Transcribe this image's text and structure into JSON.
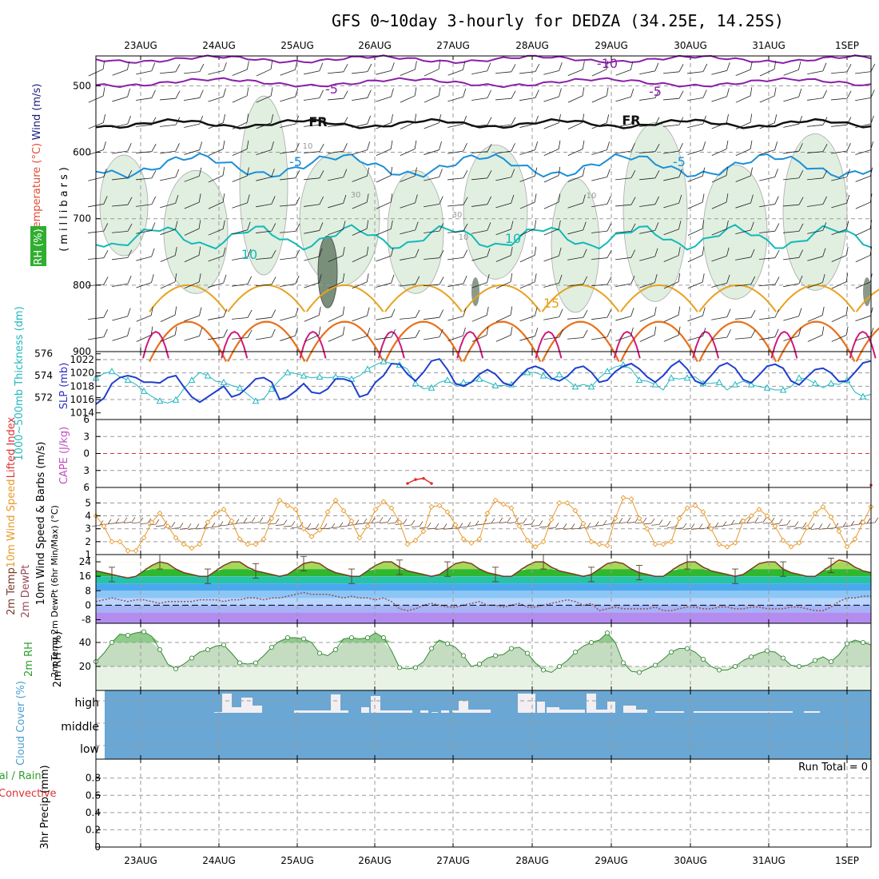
{
  "title": "GFS 0~10day 3-hourly for DEDZA (34.25E, 14.25S)",
  "dates": [
    "23AUG",
    "24AUG",
    "25AUG",
    "26AUG",
    "27AUG",
    "28AUG",
    "29AUG",
    "30AUG",
    "31AUG",
    "1SEP"
  ],
  "chart_data": [
    {
      "type": "line",
      "name": "upper-air",
      "title": "Wind (m/s), Temperature (°C), RH (%)",
      "ylabel": "millibars",
      "ylim": [
        900,
        450
      ],
      "yticks": [
        500,
        600,
        700,
        800,
        900
      ],
      "legend": {
        "wind": "Wind (m/s)",
        "temp": "Temperature (°C)",
        "rh": "RH (%)",
        "units": "(millibars)"
      },
      "isotherm_labels": [
        "-10",
        "-5",
        "-5",
        "FR",
        "FR",
        "-5",
        "-5",
        "10",
        "10",
        "15"
      ],
      "rh_labels": [
        "10",
        "30",
        "10",
        "30",
        "10"
      ]
    },
    {
      "type": "line",
      "name": "slp-thickness",
      "series": [
        {
          "name": "1000~500mb Thickness (dm)",
          "color": "#20b8c0",
          "values": [
            573.8,
            574.2,
            574.4,
            573.9,
            573.6,
            573.2,
            572.6,
            572.1,
            571.7,
            571.5,
            571.8,
            572.8,
            573.6,
            574.3,
            574.0,
            573.5,
            573.4,
            573.1,
            572.9,
            572.3,
            571.7,
            571.9,
            572.8,
            573.6,
            574.3,
            574.2,
            574.0,
            573.8,
            573.9,
            573.8,
            573.9,
            573.9,
            573.7,
            574.0,
            574.6,
            575.0,
            575.3,
            575.1,
            575.0,
            574.6,
            573.3,
            572.8,
            572.9,
            573.4,
            573.6,
            573.1,
            573.4,
            573.4,
            573.7,
            573.4,
            573.1,
            573.1,
            573.2,
            573.9,
            574.3,
            574.3,
            574.0,
            573.6,
            574.1,
            573.6,
            573.0,
            573.2,
            573.0,
            573.8,
            574.4,
            574.8,
            575.0,
            574.6,
            573.6,
            573.5,
            573.2,
            572.7,
            573.8,
            573.7,
            573.8,
            573.9,
            573.3,
            573.3,
            573.4,
            572.7,
            573.2,
            573.5,
            573.2,
            573.0,
            572.9,
            572.7,
            572.7,
            573.0,
            573.8,
            573.7,
            573.3,
            572.9,
            573.3,
            573.2,
            573.6,
            572.5,
            572.1,
            572.3
          ]
        },
        {
          "name": "SLP (mb)",
          "color": "#1f3fcc",
          "values": [
            1015.3,
            1016.2,
            1018.4,
            1019.3,
            1019.6,
            1019.3,
            1018.6,
            1018.6,
            1018.5,
            1019.3,
            1019.6,
            1017.9,
            1016.4,
            1015.6,
            1016.4,
            1017.2,
            1018.0,
            1016.4,
            1016.8,
            1017.9,
            1019.1,
            1019.3,
            1018.6,
            1016.0,
            1016.4,
            1017.3,
            1018.4,
            1017.1,
            1016.9,
            1017.6,
            1019.1,
            1019.1,
            1018.7,
            1016.4,
            1016.8,
            1018.6,
            1019.6,
            1021.4,
            1021.3,
            1019.8,
            1018.8,
            1020.1,
            1021.8,
            1022.1,
            1020.5,
            1018.4,
            1018.0,
            1018.6,
            1019.8,
            1020.5,
            1019.8,
            1018.5,
            1018.1,
            1019.4,
            1020.6,
            1021.0,
            1020.5,
            1019.2,
            1018.8,
            1019.5,
            1020.7,
            1021.0,
            1020.1,
            1018.6,
            1018.9,
            1020.2,
            1021.0,
            1021.4,
            1020.6,
            1019.4,
            1018.6,
            1019.6,
            1021.0,
            1021.8,
            1020.6,
            1018.8,
            1018.3,
            1019.6,
            1021.0,
            1021.5,
            1020.7,
            1019.0,
            1018.5,
            1019.7,
            1021.0,
            1021.3,
            1020.7,
            1018.8,
            1018.2,
            1019.4,
            1020.5,
            1020.7,
            1020.0,
            1018.7,
            1018.8,
            1020.1,
            1021.5,
            1021.8
          ]
        }
      ],
      "ylim_thickness": [
        570,
        576
      ],
      "ylim_slp": [
        1013,
        1023
      ],
      "yticks_thickness": [
        572,
        574,
        576
      ],
      "yticks_slp": [
        1014,
        1016,
        1018,
        1020,
        1022
      ],
      "ylabel_left": "1000~500mb Thickness (dm)",
      "ylabel_right": "SLP (mb)"
    },
    {
      "type": "line",
      "name": "stability",
      "series": [
        {
          "name": "Lifted Index",
          "color": "#e03030",
          "values": [
            {
              "i": 39,
              "v": 5.3
            },
            {
              "i": 40,
              "v": 4.6
            },
            {
              "i": 41,
              "v": 4.4
            },
            {
              "i": 42,
              "v": 5.3
            }
          ]
        }
      ],
      "yticks": [
        "6",
        "3",
        "0",
        "3",
        "6"
      ],
      "ylim": [
        -6,
        6
      ],
      "ylabel_left": "Lifted Index",
      "ylabel_right": "CAPE (J/kg)"
    },
    {
      "type": "line",
      "name": "wind10m",
      "series": [
        {
          "name": "10m Wind Speed",
          "color": "#e89a2a",
          "values": [
            4.0,
            3.2,
            2.0,
            2.0,
            1.3,
            1.3,
            2.3,
            3.5,
            4.2,
            3.2,
            2.3,
            1.8,
            1.5,
            1.8,
            3.5,
            4.2,
            4.5,
            3.6,
            2.2,
            1.8,
            1.8,
            2.2,
            3.8,
            5.2,
            4.8,
            4.5,
            3.0,
            2.4,
            2.9,
            4.3,
            5.2,
            4.4,
            3.6,
            2.3,
            3.2,
            4.5,
            5.1,
            4.6,
            3.5,
            1.8,
            2.1,
            2.8,
            4.7,
            4.8,
            4.3,
            3.3,
            2.2,
            1.9,
            2.2,
            4.2,
            5.2,
            4.9,
            4.6,
            3.2,
            2.1,
            1.6,
            2.0,
            3.7,
            5.0,
            5.0,
            4.4,
            3.4,
            2.0,
            1.8,
            1.7,
            3.8,
            5.4,
            5.3,
            3.8,
            3.0,
            1.8,
            1.8,
            2.0,
            3.8,
            4.6,
            4.8,
            4.3,
            3.0,
            1.8,
            1.6,
            1.9,
            3.6,
            4.0,
            4.5,
            4.0,
            3.2,
            2.1,
            1.6,
            1.9,
            3.1,
            4.2,
            4.7,
            3.9,
            2.8,
            1.6,
            2.2,
            3.5,
            4.7
          ]
        }
      ],
      "ylim": [
        1,
        6
      ],
      "yticks": [
        1,
        2,
        3,
        4,
        5
      ],
      "ylabel": "10m Wind Speed & Barbs (m/s)"
    },
    {
      "type": "area",
      "name": "temperature2m",
      "series": [
        {
          "name": "2m Temp",
          "color": "#7a3a2a",
          "values": [
            19,
            18,
            17,
            16,
            15,
            16,
            19,
            22,
            24,
            23,
            20,
            18,
            17,
            16,
            16,
            19,
            22,
            24,
            24,
            21,
            19,
            18,
            17,
            16,
            17,
            20,
            23,
            24,
            23,
            20,
            18,
            17,
            16,
            16,
            19,
            22,
            24,
            24,
            21,
            19,
            18,
            17,
            16,
            17,
            20,
            23,
            24,
            23,
            20,
            18,
            17,
            16,
            16,
            19,
            22,
            24,
            24,
            21,
            19,
            18,
            17,
            16,
            17,
            20,
            23,
            24,
            23,
            20,
            18,
            17,
            16,
            16,
            19,
            22,
            24,
            24,
            21,
            19,
            18,
            17,
            16,
            17,
            20,
            23,
            24,
            24,
            20,
            18,
            17,
            16,
            16,
            19,
            22,
            25,
            24,
            21,
            19,
            18
          ]
        },
        {
          "name": "2m DewPt",
          "color": "#9a4a5a",
          "values": [
            2,
            3,
            4,
            3,
            2,
            3,
            3,
            2,
            1,
            2,
            2,
            2,
            2,
            3,
            3,
            3,
            2,
            3,
            3,
            4,
            4,
            3,
            4,
            4,
            5,
            6,
            7,
            6,
            6,
            6,
            5,
            4,
            5,
            4,
            4,
            3,
            4,
            2,
            -2,
            -3,
            -2,
            0,
            1,
            0,
            -1,
            -1,
            0,
            1,
            2,
            0,
            0,
            -1,
            0,
            1,
            -1,
            -1,
            0,
            1,
            2,
            3,
            2,
            0,
            1,
            -3,
            -2,
            -1,
            -2,
            -2,
            -2,
            -2,
            -1,
            -3,
            -3,
            -2,
            -1,
            -1,
            -2,
            -2,
            -1,
            -1,
            -2,
            -2,
            -1,
            -1,
            -2,
            -2,
            -2,
            -1,
            -1,
            -2,
            -3,
            -3,
            -1,
            2,
            4,
            4,
            5,
            5
          ]
        }
      ],
      "ylim": [
        -10,
        28
      ],
      "yticks": [
        -8,
        0,
        8,
        16,
        24
      ],
      "ylabel": "2m Temp 2m DewPt (6hr Min/Max) (°C)"
    },
    {
      "type": "area",
      "name": "rh2m",
      "series": [
        {
          "name": "2m RH",
          "color": "#3a8a3a",
          "values": [
            24,
            31,
            40,
            47,
            46,
            48,
            49,
            45,
            34,
            22,
            18,
            22,
            27,
            32,
            34,
            37,
            38,
            31,
            23,
            22,
            23,
            29,
            36,
            41,
            44,
            44,
            43,
            40,
            31,
            29,
            34,
            43,
            44,
            43,
            44,
            48,
            44,
            33,
            19,
            18,
            19,
            24,
            35,
            42,
            39,
            36,
            29,
            20,
            22,
            27,
            29,
            30,
            35,
            36,
            31,
            23,
            17,
            15,
            20,
            25,
            32,
            37,
            40,
            42,
            48,
            40,
            23,
            16,
            15,
            18,
            21,
            26,
            32,
            35,
            35,
            32,
            26,
            20,
            17,
            17,
            20,
            25,
            28,
            31,
            33,
            32,
            27,
            21,
            20,
            21,
            25,
            28,
            24,
            30,
            39,
            42,
            40,
            38
          ]
        }
      ],
      "ylim": [
        0,
        56
      ],
      "yticks": [
        20,
        40
      ],
      "ylabel": "2m RH (%)"
    },
    {
      "type": "bar",
      "name": "cloud",
      "categories": [
        "low",
        "middle",
        "high"
      ],
      "series": [
        {
          "name": "Cloud Cover (%)",
          "color": "#6aa7d4"
        }
      ],
      "ylabel": "Cloud Cover (%)"
    },
    {
      "type": "bar",
      "name": "precip",
      "series": [
        {
          "name": "Total / Rain",
          "color": "#2ca02c",
          "values": []
        },
        {
          "name": "Convective",
          "color": "#e03030",
          "values": []
        }
      ],
      "ylim": [
        0,
        1
      ],
      "yticks": [
        0,
        0.2,
        0.4,
        0.6,
        0.8
      ],
      "ylabel": "3hr Precip (mm)",
      "run_total": "Run Total = 0"
    }
  ]
}
